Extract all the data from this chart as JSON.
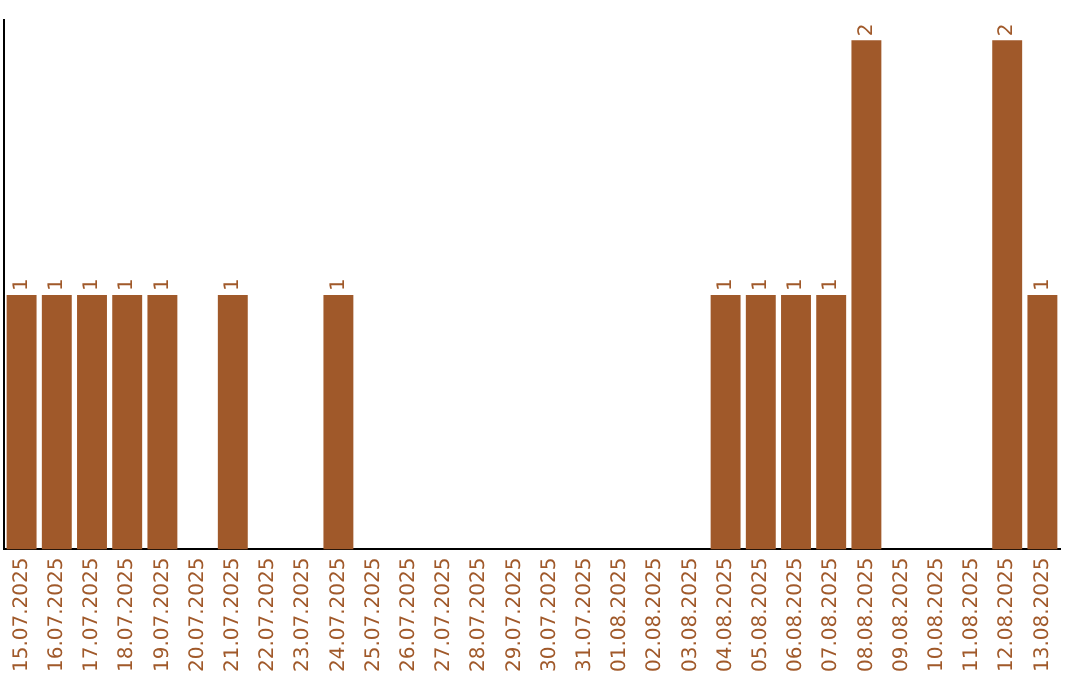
{
  "chart_data": {
    "type": "bar",
    "categories": [
      "15.07.2025",
      "16.07.2025",
      "17.07.2025",
      "18.07.2025",
      "19.07.2025",
      "20.07.2025",
      "21.07.2025",
      "22.07.2025",
      "23.07.2025",
      "24.07.2025",
      "25.07.2025",
      "26.07.2025",
      "27.07.2025",
      "28.07.2025",
      "29.07.2025",
      "30.07.2025",
      "31.07.2025",
      "01.08.2025",
      "02.08.2025",
      "03.08.2025",
      "04.08.2025",
      "05.08.2025",
      "06.08.2025",
      "07.08.2025",
      "08.08.2025",
      "09.08.2025",
      "10.08.2025",
      "11.08.2025",
      "12.08.2025",
      "13.08.2025"
    ],
    "values": [
      1,
      1,
      1,
      1,
      1,
      0,
      1,
      0,
      0,
      1,
      0,
      0,
      0,
      0,
      0,
      0,
      0,
      0,
      0,
      0,
      1,
      1,
      1,
      1,
      2,
      0,
      0,
      0,
      2,
      1
    ],
    "value_labels": [
      "1",
      "1",
      "1",
      "1",
      "1",
      null,
      "1",
      null,
      null,
      "1",
      null,
      null,
      null,
      null,
      null,
      null,
      null,
      null,
      null,
      null,
      "1",
      "1",
      "1",
      "1",
      "2",
      null,
      null,
      null,
      "2",
      "1"
    ],
    "color": "#a0592a",
    "grid": false,
    "legend": false,
    "tick_labels": "x"
  }
}
